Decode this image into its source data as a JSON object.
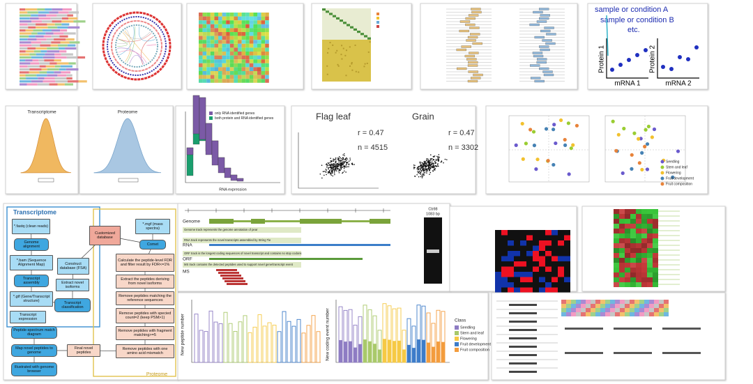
{
  "condition_plot": {
    "sample_a": "sample or condition A",
    "sample_b": "sample or condition B",
    "etc": "etc.",
    "protein_1": "Protein 1",
    "mrna_1": "mRNA 1",
    "protein_2": "Protein 2",
    "mrna_2": "mRNA 2"
  },
  "density": {
    "transcriptome": "Transcriptome",
    "proteome": "Proteome"
  },
  "histogram": {
    "legend": [
      {
        "name": "only RNA identified genes",
        "color": "#7b5aa6"
      },
      {
        "name": "both protein and RNA identified genes",
        "color": "#1a9e6e"
      }
    ],
    "x_label": "RNA expression"
  },
  "correlation": [
    {
      "title": "Flag leaf",
      "r": "r = 0.47",
      "n": "n = 4515"
    },
    {
      "title": "Grain",
      "r": "r = 0.47",
      "n": "n = 3302"
    }
  ],
  "pca": {
    "legend": [
      {
        "name": "Seedling",
        "color": "#6a5acd"
      },
      {
        "name": "Stem and leaf",
        "color": "#9acd32"
      },
      {
        "name": "Flowering",
        "color": "#f2c12e"
      },
      {
        "name": "Fruit development",
        "color": "#4682b4"
      },
      {
        "name": "Fruit composition",
        "color": "#e8833a"
      }
    ]
  },
  "flowchart": {
    "transcriptome": "Transcriptome",
    "proteome": "Proteome",
    "nodes": [
      "*.fastq (clean reads)",
      "Genome alignment",
      "*.bam (Sequence Alignment Map)",
      "Transcript assembly",
      "*.gtf (Gene/Transcript structure)",
      "Transcript expression",
      "Transcript classification",
      "Extract novel isoforms",
      "Construct database (FSA)",
      "Customized database",
      "*.mgf (mass spectra)",
      "Comet",
      "Calculate the peptide-level FDR and filter result by FDR<=1%",
      "Extract the peptides deriving from novel isoforms",
      "Remove peptides matching the reference sequences",
      "Remove peptides with specied count=2 (keep PSM>1)",
      "Remove peptides with fragment matching>=5",
      "Remove peptides with one amino acid mismatch",
      "Final novel peptides",
      "Map novel peptides to genome",
      "Peptide-spectrum match diagram",
      "Illustrated with genome browser"
    ]
  },
  "genome_browser": {
    "tracks": [
      "Genome",
      "RNA",
      "ORF",
      "MS"
    ],
    "notes": [
      "Genome track represents the genome annotation of pear",
      "RNA track represents the novel transcripts assembled by String Tie",
      "ORF track is the longest coding sequences of novel transcript and contains no stop codons",
      "MS track contains the detected peptides used to support novel gene/transcript event"
    ],
    "gel_label": "Cb98",
    "gel_size": "1083 bp"
  },
  "bar_chart": {
    "y_left": "New peptide number",
    "y_right": "New coding event number",
    "legend_title": "Class",
    "legend": [
      {
        "name": "Seedling",
        "color": "#8e7cc3"
      },
      {
        "name": "Stem and leaf",
        "color": "#a9c96a"
      },
      {
        "name": "Flowering",
        "color": "#f6c944"
      },
      {
        "name": "Fruit development",
        "color": "#3d7cc9"
      },
      {
        "name": "Fruit composition",
        "color": "#f39c3d"
      }
    ]
  }
}
